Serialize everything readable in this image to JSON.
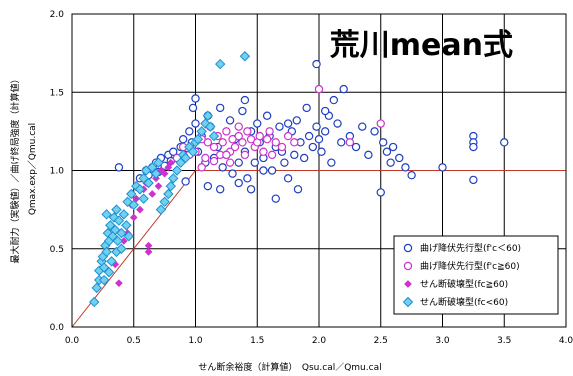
{
  "chart_data": {
    "type": "scatter",
    "title": "荒川mean式",
    "xlabel": "せん断余裕度（計算値）　Qsu.cal／Qmu.cal",
    "ylabel_main": "最大耐力（実験値）／曲げ終局強度（計算値）",
    "ylabel_sub": "Qmax.exp／Qmu.cal",
    "xlim": [
      0,
      4.0
    ],
    "ylim": [
      0,
      2.0
    ],
    "x_ticks": [
      "0.0",
      "0.5",
      "1.0",
      "1.5",
      "2.0",
      "2.5",
      "3.0",
      "3.5",
      "4.0"
    ],
    "y_ticks": [
      "0.0",
      "0.5",
      "1.0",
      "1.5",
      "2.0"
    ],
    "grid": true,
    "legend_position": "bottom-right",
    "reference_lines": [
      {
        "description": "y = x",
        "points": [
          [
            0,
            0
          ],
          [
            1.0,
            1.0
          ]
        ],
        "color": "#c0392b"
      },
      {
        "description": "y = 1.0",
        "points": [
          [
            1.0,
            1.0
          ],
          [
            4.0,
            1.0
          ]
        ],
        "color": "#c0392b"
      }
    ],
    "series": [
      {
        "name": "曲げ降伏先行型(f'c＜60)",
        "marker": "circle-open",
        "color": "#1f3fbf",
        "points": [
          [
            0.38,
            1.02
          ],
          [
            0.55,
            0.95
          ],
          [
            0.6,
            1.0
          ],
          [
            0.62,
            0.97
          ],
          [
            0.65,
            1.02
          ],
          [
            0.68,
            1.05
          ],
          [
            0.7,
            0.99
          ],
          [
            0.72,
            1.08
          ],
          [
            0.75,
            1.03
          ],
          [
            0.78,
            1.1
          ],
          [
            0.8,
            1.06
          ],
          [
            0.82,
            1.12
          ],
          [
            0.85,
            1.08
          ],
          [
            0.88,
            1.15
          ],
          [
            0.9,
            1.2
          ],
          [
            0.92,
            1.1
          ],
          [
            0.95,
            1.25
          ],
          [
            0.97,
            1.18
          ],
          [
            1.0,
            1.3
          ],
          [
            1.02,
            1.12
          ],
          [
            1.05,
            1.22
          ],
          [
            1.08,
            1.05
          ],
          [
            1.1,
            1.35
          ],
          [
            1.12,
            1.28
          ],
          [
            1.15,
            1.08
          ],
          [
            1.18,
            1.15
          ],
          [
            1.2,
            1.4
          ],
          [
            1.22,
            1.02
          ],
          [
            1.25,
            1.1
          ],
          [
            1.28,
            1.32
          ],
          [
            1.3,
            0.98
          ],
          [
            1.32,
            1.2
          ],
          [
            1.35,
            1.05
          ],
          [
            1.38,
            1.38
          ],
          [
            1.4,
            1.12
          ],
          [
            1.42,
            0.95
          ],
          [
            1.45,
            1.25
          ],
          [
            1.48,
            1.05
          ],
          [
            1.5,
            1.3
          ],
          [
            1.52,
            1.18
          ],
          [
            1.55,
            1.08
          ],
          [
            1.58,
            1.35
          ],
          [
            1.6,
            1.22
          ],
          [
            1.62,
            1.0
          ],
          [
            1.65,
            1.15
          ],
          [
            1.68,
            1.28
          ],
          [
            1.7,
            1.12
          ],
          [
            1.72,
            1.05
          ],
          [
            1.75,
            0.95
          ],
          [
            1.78,
            1.25
          ],
          [
            1.8,
            1.1
          ],
          [
            1.82,
            1.32
          ],
          [
            1.85,
            1.18
          ],
          [
            1.88,
            1.08
          ],
          [
            1.9,
            1.4
          ],
          [
            1.92,
            1.22
          ],
          [
            1.95,
            1.15
          ],
          [
            1.98,
            1.28
          ],
          [
            2.0,
            1.2
          ],
          [
            2.02,
            1.12
          ],
          [
            2.05,
            1.25
          ],
          [
            2.08,
            1.35
          ],
          [
            2.1,
            1.05
          ],
          [
            2.12,
            1.45
          ],
          [
            2.15,
            1.3
          ],
          [
            2.18,
            1.18
          ],
          [
            2.2,
            1.52
          ],
          [
            2.25,
            1.22
          ],
          [
            2.3,
            1.15
          ],
          [
            2.35,
            1.28
          ],
          [
            2.4,
            1.1
          ],
          [
            2.45,
            1.25
          ],
          [
            2.5,
            0.86
          ],
          [
            2.52,
            1.18
          ],
          [
            2.55,
            1.12
          ],
          [
            2.58,
            1.05
          ],
          [
            2.6,
            1.15
          ],
          [
            2.65,
            1.08
          ],
          [
            2.7,
            1.02
          ],
          [
            2.75,
            0.97
          ],
          [
            3.0,
            1.02
          ],
          [
            3.25,
            1.22
          ],
          [
            3.25,
            1.18
          ],
          [
            3.25,
            1.15
          ],
          [
            3.25,
            0.94
          ],
          [
            3.5,
            1.18
          ],
          [
            1.98,
            1.68
          ],
          [
            1.0,
            1.46
          ],
          [
            0.98,
            1.4
          ],
          [
            1.1,
            0.9
          ],
          [
            1.2,
            0.88
          ],
          [
            1.35,
            0.92
          ],
          [
            1.45,
            0.88
          ],
          [
            1.65,
            0.82
          ],
          [
            1.83,
            0.88
          ],
          [
            1.4,
            1.45
          ],
          [
            1.55,
            1.0
          ],
          [
            1.75,
            1.3
          ],
          [
            2.05,
            1.38
          ],
          [
            0.92,
            0.93
          ]
        ]
      },
      {
        "name": "曲げ降伏先行型(f'c≧60)",
        "marker": "circle-open",
        "color": "#cc33cc",
        "points": [
          [
            0.9,
            1.15
          ],
          [
            0.95,
            1.1
          ],
          [
            1.0,
            1.12
          ],
          [
            1.05,
            1.2
          ],
          [
            1.08,
            1.08
          ],
          [
            1.1,
            1.18
          ],
          [
            1.15,
            1.15
          ],
          [
            1.18,
            1.22
          ],
          [
            1.2,
            1.1
          ],
          [
            1.22,
            1.18
          ],
          [
            1.25,
            1.25
          ],
          [
            1.28,
            1.12
          ],
          [
            1.3,
            1.2
          ],
          [
            1.32,
            1.15
          ],
          [
            1.35,
            1.22
          ],
          [
            1.38,
            1.18
          ],
          [
            1.4,
            1.1
          ],
          [
            1.42,
            1.25
          ],
          [
            1.45,
            1.2
          ],
          [
            1.48,
            1.15
          ],
          [
            1.5,
            1.18
          ],
          [
            1.52,
            1.22
          ],
          [
            1.55,
            1.12
          ],
          [
            1.58,
            1.2
          ],
          [
            1.6,
            1.25
          ],
          [
            1.65,
            1.18
          ],
          [
            1.7,
            1.15
          ],
          [
            1.75,
            1.22
          ],
          [
            1.8,
            1.18
          ],
          [
            2.0,
            1.52
          ],
          [
            2.25,
            1.18
          ],
          [
            2.5,
            1.3
          ],
          [
            1.25,
            1.1
          ],
          [
            1.15,
            1.06
          ],
          [
            0.85,
            1.08
          ],
          [
            1.05,
            1.02
          ],
          [
            1.35,
            1.28
          ],
          [
            1.62,
            1.1
          ],
          [
            1.12,
            1.28
          ],
          [
            1.28,
            1.05
          ]
        ]
      },
      {
        "name": "せん断破壊型(fc≧60)",
        "marker": "diamond-filled",
        "color": "#cc33cc",
        "points": [
          [
            0.38,
            0.28
          ],
          [
            0.42,
            0.55
          ],
          [
            0.45,
            0.6
          ],
          [
            0.48,
            0.78
          ],
          [
            0.5,
            0.7
          ],
          [
            0.52,
            0.82
          ],
          [
            0.55,
            0.75
          ],
          [
            0.58,
            0.88
          ],
          [
            0.6,
            0.92
          ],
          [
            0.62,
            0.48
          ],
          [
            0.65,
            0.85
          ],
          [
            0.68,
            0.95
          ],
          [
            0.7,
            0.9
          ],
          [
            0.72,
            1.0
          ],
          [
            0.75,
            0.98
          ],
          [
            0.78,
            1.02
          ],
          [
            0.8,
            1.05
          ],
          [
            0.62,
            0.52
          ],
          [
            0.35,
            0.4
          ],
          [
            0.55,
            0.88
          ]
        ]
      },
      {
        "name": "せん断破壊型(fc<60)",
        "marker": "diamond-open",
        "color": "#1f8fd0",
        "points": [
          [
            0.18,
            0.16
          ],
          [
            0.2,
            0.25
          ],
          [
            0.22,
            0.3
          ],
          [
            0.22,
            0.36
          ],
          [
            0.24,
            0.42
          ],
          [
            0.25,
            0.45
          ],
          [
            0.26,
            0.38
          ],
          [
            0.27,
            0.52
          ],
          [
            0.28,
            0.48
          ],
          [
            0.29,
            0.6
          ],
          [
            0.3,
            0.55
          ],
          [
            0.31,
            0.65
          ],
          [
            0.32,
            0.42
          ],
          [
            0.33,
            0.58
          ],
          [
            0.34,
            0.7
          ],
          [
            0.35,
            0.62
          ],
          [
            0.36,
            0.48
          ],
          [
            0.37,
            0.55
          ],
          [
            0.38,
            0.68
          ],
          [
            0.4,
            0.6
          ],
          [
            0.42,
            0.72
          ],
          [
            0.44,
            0.65
          ],
          [
            0.45,
            0.8
          ],
          [
            0.46,
            0.58
          ],
          [
            0.48,
            0.85
          ],
          [
            0.5,
            0.78
          ],
          [
            0.52,
            0.9
          ],
          [
            0.55,
            0.88
          ],
          [
            0.58,
            0.95
          ],
          [
            0.6,
            1.0
          ],
          [
            0.62,
            0.92
          ],
          [
            0.65,
            1.02
          ],
          [
            0.68,
            0.98
          ],
          [
            0.7,
            1.05
          ],
          [
            0.72,
            0.75
          ],
          [
            0.75,
            0.8
          ],
          [
            0.78,
            0.85
          ],
          [
            0.8,
            0.9
          ],
          [
            0.82,
            0.95
          ],
          [
            0.85,
            1.0
          ],
          [
            0.88,
            1.05
          ],
          [
            0.9,
            1.1
          ],
          [
            0.92,
            1.08
          ],
          [
            0.95,
            1.15
          ],
          [
            0.98,
            1.12
          ],
          [
            1.0,
            1.18
          ],
          [
            1.02,
            1.2
          ],
          [
            1.05,
            1.25
          ],
          [
            1.08,
            1.3
          ],
          [
            1.1,
            1.35
          ],
          [
            1.12,
            1.28
          ],
          [
            1.15,
            1.22
          ],
          [
            1.2,
            1.68
          ],
          [
            1.4,
            1.73
          ],
          [
            0.3,
            0.35
          ],
          [
            0.26,
            0.3
          ],
          [
            0.4,
            0.5
          ],
          [
            0.36,
            0.75
          ],
          [
            0.58,
            0.82
          ],
          [
            0.28,
            0.72
          ]
        ]
      }
    ]
  }
}
